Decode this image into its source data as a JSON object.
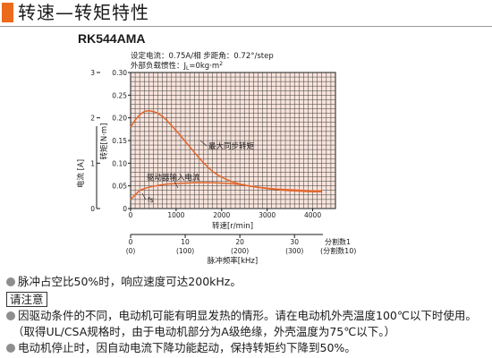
{
  "header": {
    "title": "转速—转矩特性",
    "model": "RK544AMA",
    "accent_color": "#ec6a1c"
  },
  "conditions": {
    "line1": "设定电流：0.75A/相  步距角：0.72°/step",
    "line2": "外部负载惯性：J",
    "line2_sub": "L",
    "line2_rest": "=0kg·m",
    "line2_sup": "2"
  },
  "chart_data": {
    "type": "line",
    "x": {
      "label": "转速[r/min]",
      "range": [
        0,
        4500
      ],
      "ticks": [
        0,
        1000,
        2000,
        3000,
        4000
      ],
      "minor_step": 100
    },
    "y_torque": {
      "label": "转矩[N·m]",
      "range": [
        0,
        0.3
      ],
      "ticks": [
        "0",
        "0.05",
        "0.10",
        "0.15",
        "0.20",
        "0.25",
        "0.30"
      ],
      "minor_step": 0.01
    },
    "y_current": {
      "label": "电流 [A]",
      "range": [
        0,
        3
      ],
      "ticks": [
        "0",
        "1",
        "2",
        "3"
      ]
    },
    "pulse_axis": {
      "label": "脉冲频率[kHz]",
      "ticks": [
        {
          "speed": 0,
          "top": "0",
          "bottom": "(0)"
        },
        {
          "speed": 1200,
          "top": "10",
          "bottom": "(100)"
        },
        {
          "speed": 2400,
          "top": "20",
          "bottom": "(200)"
        },
        {
          "speed": 3600,
          "top": "30",
          "bottom": "(300)"
        }
      ],
      "end_top": "分割数1",
      "end_bottom": "(分割数10)"
    },
    "series": [
      {
        "name": "最大同步转矩",
        "axis": "torque",
        "color": "#e2662c",
        "points": [
          [
            0,
            0.18
          ],
          [
            100,
            0.195
          ],
          [
            200,
            0.207
          ],
          [
            300,
            0.214
          ],
          [
            400,
            0.216
          ],
          [
            500,
            0.214
          ],
          [
            600,
            0.21
          ],
          [
            700,
            0.203
          ],
          [
            800,
            0.194
          ],
          [
            900,
            0.183
          ],
          [
            1000,
            0.172
          ],
          [
            1100,
            0.16
          ],
          [
            1200,
            0.148
          ],
          [
            1300,
            0.136
          ],
          [
            1400,
            0.124
          ],
          [
            1500,
            0.112
          ],
          [
            1600,
            0.101
          ],
          [
            1700,
            0.091
          ],
          [
            1800,
            0.082
          ],
          [
            1900,
            0.075
          ],
          [
            2000,
            0.069
          ],
          [
            2200,
            0.06
          ],
          [
            2400,
            0.054
          ],
          [
            2600,
            0.05
          ],
          [
            2800,
            0.047
          ],
          [
            3000,
            0.045
          ],
          [
            3200,
            0.043
          ],
          [
            3400,
            0.042
          ],
          [
            3600,
            0.041
          ],
          [
            3800,
            0.04
          ],
          [
            4000,
            0.039
          ],
          [
            4200,
            0.039
          ]
        ]
      },
      {
        "name": "驱动器输入电流",
        "axis": "current",
        "color": "#e2662c",
        "points": [
          [
            0,
            0.2
          ],
          [
            100,
            0.3
          ],
          [
            200,
            0.4
          ],
          [
            300,
            0.44
          ],
          [
            400,
            0.47
          ],
          [
            600,
            0.51
          ],
          [
            800,
            0.54
          ],
          [
            1000,
            0.55
          ],
          [
            1200,
            0.56
          ],
          [
            1400,
            0.57
          ],
          [
            1600,
            0.57
          ],
          [
            1800,
            0.57
          ],
          [
            2000,
            0.56
          ],
          [
            2200,
            0.55
          ],
          [
            2400,
            0.53
          ],
          [
            2600,
            0.5
          ],
          [
            2800,
            0.47
          ],
          [
            3000,
            0.44
          ],
          [
            3200,
            0.42
          ],
          [
            3400,
            0.4
          ],
          [
            3600,
            0.39
          ],
          [
            3800,
            0.38
          ],
          [
            4000,
            0.37
          ],
          [
            4200,
            0.37
          ]
        ]
      }
    ],
    "annotations": {
      "fs": "fs"
    }
  },
  "notes": {
    "n1": "脉冲占空比50%时，响应速度可达200kHz。",
    "caution": "请注意",
    "n2": "因驱动条件的不同，电动机可能有明显发热的情形。请在电动机外壳温度100℃以下时使用。",
    "n3": "（取得UL/CSA规格时，由于电动机部分为A级绝缘，外壳温度为75℃以下。）",
    "n4": "电动机停止时，因自动电流下降功能起动，保持转矩约下降到50%。"
  }
}
